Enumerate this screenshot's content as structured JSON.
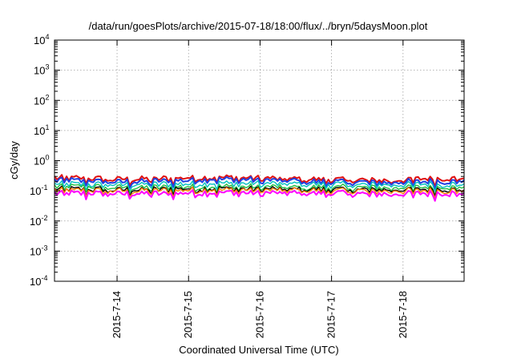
{
  "chart_data": {
    "type": "line",
    "title": "/data/run/goesPlots/archive/2015-07-18/18:00/flux/../bryn/5daysMoon.plot",
    "xlabel": "Coordinated Universal Time (UTC)",
    "ylabel": "cGy/day",
    "yscale": "log",
    "ylim": [
      0.0001,
      10000
    ],
    "xlim": [
      "2015-07-13 03:00",
      "2015-07-18 20:30"
    ],
    "grid": true,
    "legend": "none",
    "yticks": [
      {
        "base": "10",
        "exp": "-4"
      },
      {
        "base": "10",
        "exp": "-3"
      },
      {
        "base": "10",
        "exp": "-2"
      },
      {
        "base": "10",
        "exp": "-1"
      },
      {
        "base": "10",
        "exp": "0"
      },
      {
        "base": "10",
        "exp": "1"
      },
      {
        "base": "10",
        "exp": "2"
      },
      {
        "base": "10",
        "exp": "3"
      },
      {
        "base": "10",
        "exp": "4"
      }
    ],
    "xticks": [
      "2015-7-14",
      "2015-7-15",
      "2015-7-16",
      "2015-7-17",
      "2015-7-18"
    ],
    "series": [
      {
        "color": "#e01010",
        "base": 0.26,
        "values": [
          0.27,
          0.24,
          0.28,
          0.25,
          0.22,
          0.27
        ]
      },
      {
        "color": "#2040e0",
        "base": 0.22,
        "values": [
          0.23,
          0.2,
          0.25,
          0.21,
          0.19,
          0.22
        ]
      },
      {
        "color": "#00c0c0",
        "base": 0.17,
        "values": [
          0.17,
          0.16,
          0.18,
          0.17,
          0.16,
          0.17
        ]
      },
      {
        "color": "#20c040",
        "base": 0.135,
        "values": [
          0.14,
          0.13,
          0.14,
          0.135,
          0.13,
          0.135
        ]
      },
      {
        "color": "#000000",
        "base": 0.115,
        "values": [
          0.115,
          0.11,
          0.12,
          0.115,
          0.11,
          0.115
        ]
      },
      {
        "color": "#ff8000",
        "base": 0.105,
        "values": [
          0.105,
          0.1,
          0.11,
          0.105,
          0.1,
          0.105
        ]
      },
      {
        "color": "#ff00ff",
        "base": 0.085,
        "values": [
          0.085,
          0.08,
          0.09,
          0.085,
          0.08,
          0.085
        ]
      }
    ]
  }
}
